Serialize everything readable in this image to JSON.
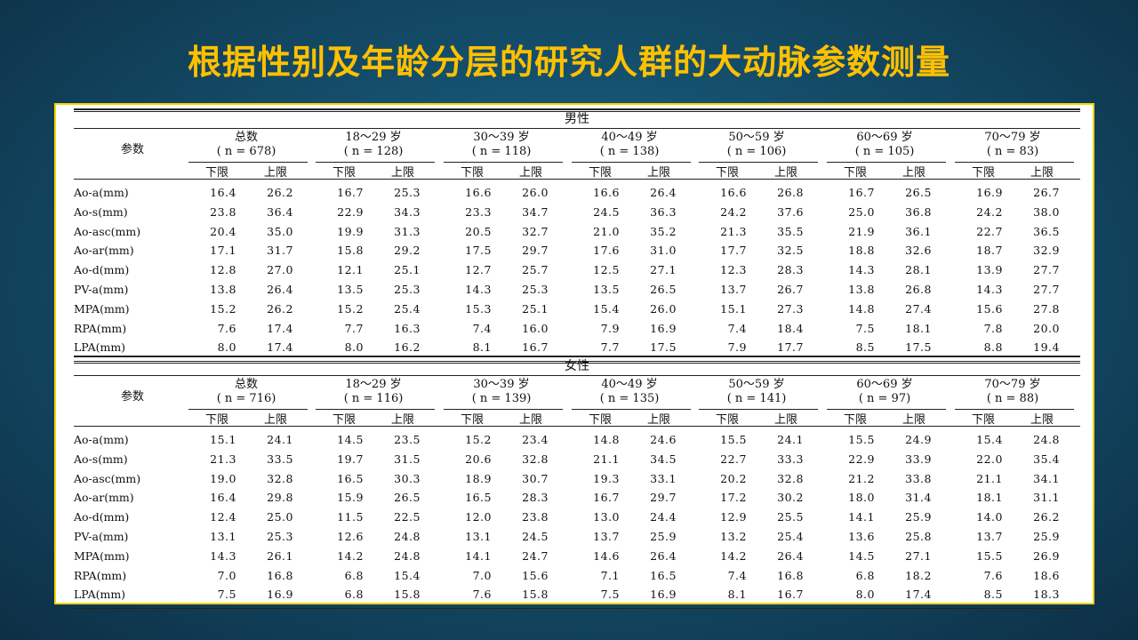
{
  "title": "根据性别及年龄分层的研究人群的大动脉参数测量",
  "table": {
    "param_header": "参数",
    "lower_label": "下限",
    "upper_label": "上限",
    "rows": [
      "Ao-a(mm)",
      "Ao-s(mm)",
      "Ao-asc(mm)",
      "Ao-ar(mm)",
      "Ao-d(mm)",
      "PV-a(mm)",
      "MPA(mm)",
      "RPA(mm)",
      "LPA(mm)"
    ],
    "sections": [
      {
        "gender": "男性",
        "groups": [
          {
            "label": "总数",
            "n": "( n = 678)"
          },
          {
            "label": "18～29 岁",
            "n": "( n = 128)"
          },
          {
            "label": "30～39 岁",
            "n": "( n = 118)"
          },
          {
            "label": "40～49 岁",
            "n": "( n = 138)"
          },
          {
            "label": "50～59 岁",
            "n": "( n = 106)"
          },
          {
            "label": "60～69 岁",
            "n": "( n = 105)"
          },
          {
            "label": "70～79 岁",
            "n": "( n = 83)"
          }
        ],
        "values": [
          [
            "16.4",
            "26.2",
            "16.7",
            "25.3",
            "16.6",
            "26.0",
            "16.6",
            "26.4",
            "16.6",
            "26.8",
            "16.7",
            "26.5",
            "16.9",
            "26.7"
          ],
          [
            "23.8",
            "36.4",
            "22.9",
            "34.3",
            "23.3",
            "34.7",
            "24.5",
            "36.3",
            "24.2",
            "37.6",
            "25.0",
            "36.8",
            "24.2",
            "38.0"
          ],
          [
            "20.4",
            "35.0",
            "19.9",
            "31.3",
            "20.5",
            "32.7",
            "21.0",
            "35.2",
            "21.3",
            "35.5",
            "21.9",
            "36.1",
            "22.7",
            "36.5"
          ],
          [
            "17.1",
            "31.7",
            "15.8",
            "29.2",
            "17.5",
            "29.7",
            "17.6",
            "31.0",
            "17.7",
            "32.5",
            "18.8",
            "32.6",
            "18.7",
            "32.9"
          ],
          [
            "12.8",
            "27.0",
            "12.1",
            "25.1",
            "12.7",
            "25.7",
            "12.5",
            "27.1",
            "12.3",
            "28.3",
            "14.3",
            "28.1",
            "13.9",
            "27.7"
          ],
          [
            "13.8",
            "26.4",
            "13.5",
            "25.3",
            "14.3",
            "25.3",
            "13.5",
            "26.5",
            "13.7",
            "26.7",
            "13.8",
            "26.8",
            "14.3",
            "27.7"
          ],
          [
            "15.2",
            "26.2",
            "15.2",
            "25.4",
            "15.3",
            "25.1",
            "15.4",
            "26.0",
            "15.1",
            "27.3",
            "14.8",
            "27.4",
            "15.6",
            "27.8"
          ],
          [
            "7.6",
            "17.4",
            "7.7",
            "16.3",
            "7.4",
            "16.0",
            "7.9",
            "16.9",
            "7.4",
            "18.4",
            "7.5",
            "18.1",
            "7.8",
            "20.0"
          ],
          [
            "8.0",
            "17.4",
            "8.0",
            "16.2",
            "8.1",
            "16.7",
            "7.7",
            "17.5",
            "7.9",
            "17.7",
            "8.5",
            "17.5",
            "8.8",
            "19.4"
          ]
        ]
      },
      {
        "gender": "女性",
        "groups": [
          {
            "label": "总数",
            "n": "( n = 716)"
          },
          {
            "label": "18～29 岁",
            "n": "( n = 116)"
          },
          {
            "label": "30～39 岁",
            "n": "( n = 139)"
          },
          {
            "label": "40～49 岁",
            "n": "( n = 135)"
          },
          {
            "label": "50～59 岁",
            "n": "( n = 141)"
          },
          {
            "label": "60～69 岁",
            "n": "( n = 97)"
          },
          {
            "label": "70～79 岁",
            "n": "( n = 88)"
          }
        ],
        "values": [
          [
            "15.1",
            "24.1",
            "14.5",
            "23.5",
            "15.2",
            "23.4",
            "14.8",
            "24.6",
            "15.5",
            "24.1",
            "15.5",
            "24.9",
            "15.4",
            "24.8"
          ],
          [
            "21.3",
            "33.5",
            "19.7",
            "31.5",
            "20.6",
            "32.8",
            "21.1",
            "34.5",
            "22.7",
            "33.3",
            "22.9",
            "33.9",
            "22.0",
            "35.4"
          ],
          [
            "19.0",
            "32.8",
            "16.5",
            "30.3",
            "18.9",
            "30.7",
            "19.3",
            "33.1",
            "20.2",
            "32.8",
            "21.2",
            "33.8",
            "21.1",
            "34.1"
          ],
          [
            "16.4",
            "29.8",
            "15.9",
            "26.5",
            "16.5",
            "28.3",
            "16.7",
            "29.7",
            "17.2",
            "30.2",
            "18.0",
            "31.4",
            "18.1",
            "31.1"
          ],
          [
            "12.4",
            "25.0",
            "11.5",
            "22.5",
            "12.0",
            "23.8",
            "13.0",
            "24.4",
            "12.9",
            "25.5",
            "14.1",
            "25.9",
            "14.0",
            "26.2"
          ],
          [
            "13.1",
            "25.3",
            "12.6",
            "24.8",
            "13.1",
            "24.5",
            "13.7",
            "25.9",
            "13.2",
            "25.4",
            "13.6",
            "25.8",
            "13.7",
            "25.9"
          ],
          [
            "14.3",
            "26.1",
            "14.2",
            "24.8",
            "14.1",
            "24.7",
            "14.6",
            "26.4",
            "14.2",
            "26.4",
            "14.5",
            "27.1",
            "15.5",
            "26.9"
          ],
          [
            "7.0",
            "16.8",
            "6.8",
            "15.4",
            "7.0",
            "15.6",
            "7.1",
            "16.5",
            "7.4",
            "16.8",
            "6.8",
            "18.2",
            "7.6",
            "18.6"
          ],
          [
            "7.5",
            "16.9",
            "6.8",
            "15.8",
            "7.6",
            "15.8",
            "7.5",
            "16.9",
            "8.1",
            "16.7",
            "8.0",
            "17.4",
            "8.5",
            "18.3"
          ]
        ]
      }
    ]
  }
}
